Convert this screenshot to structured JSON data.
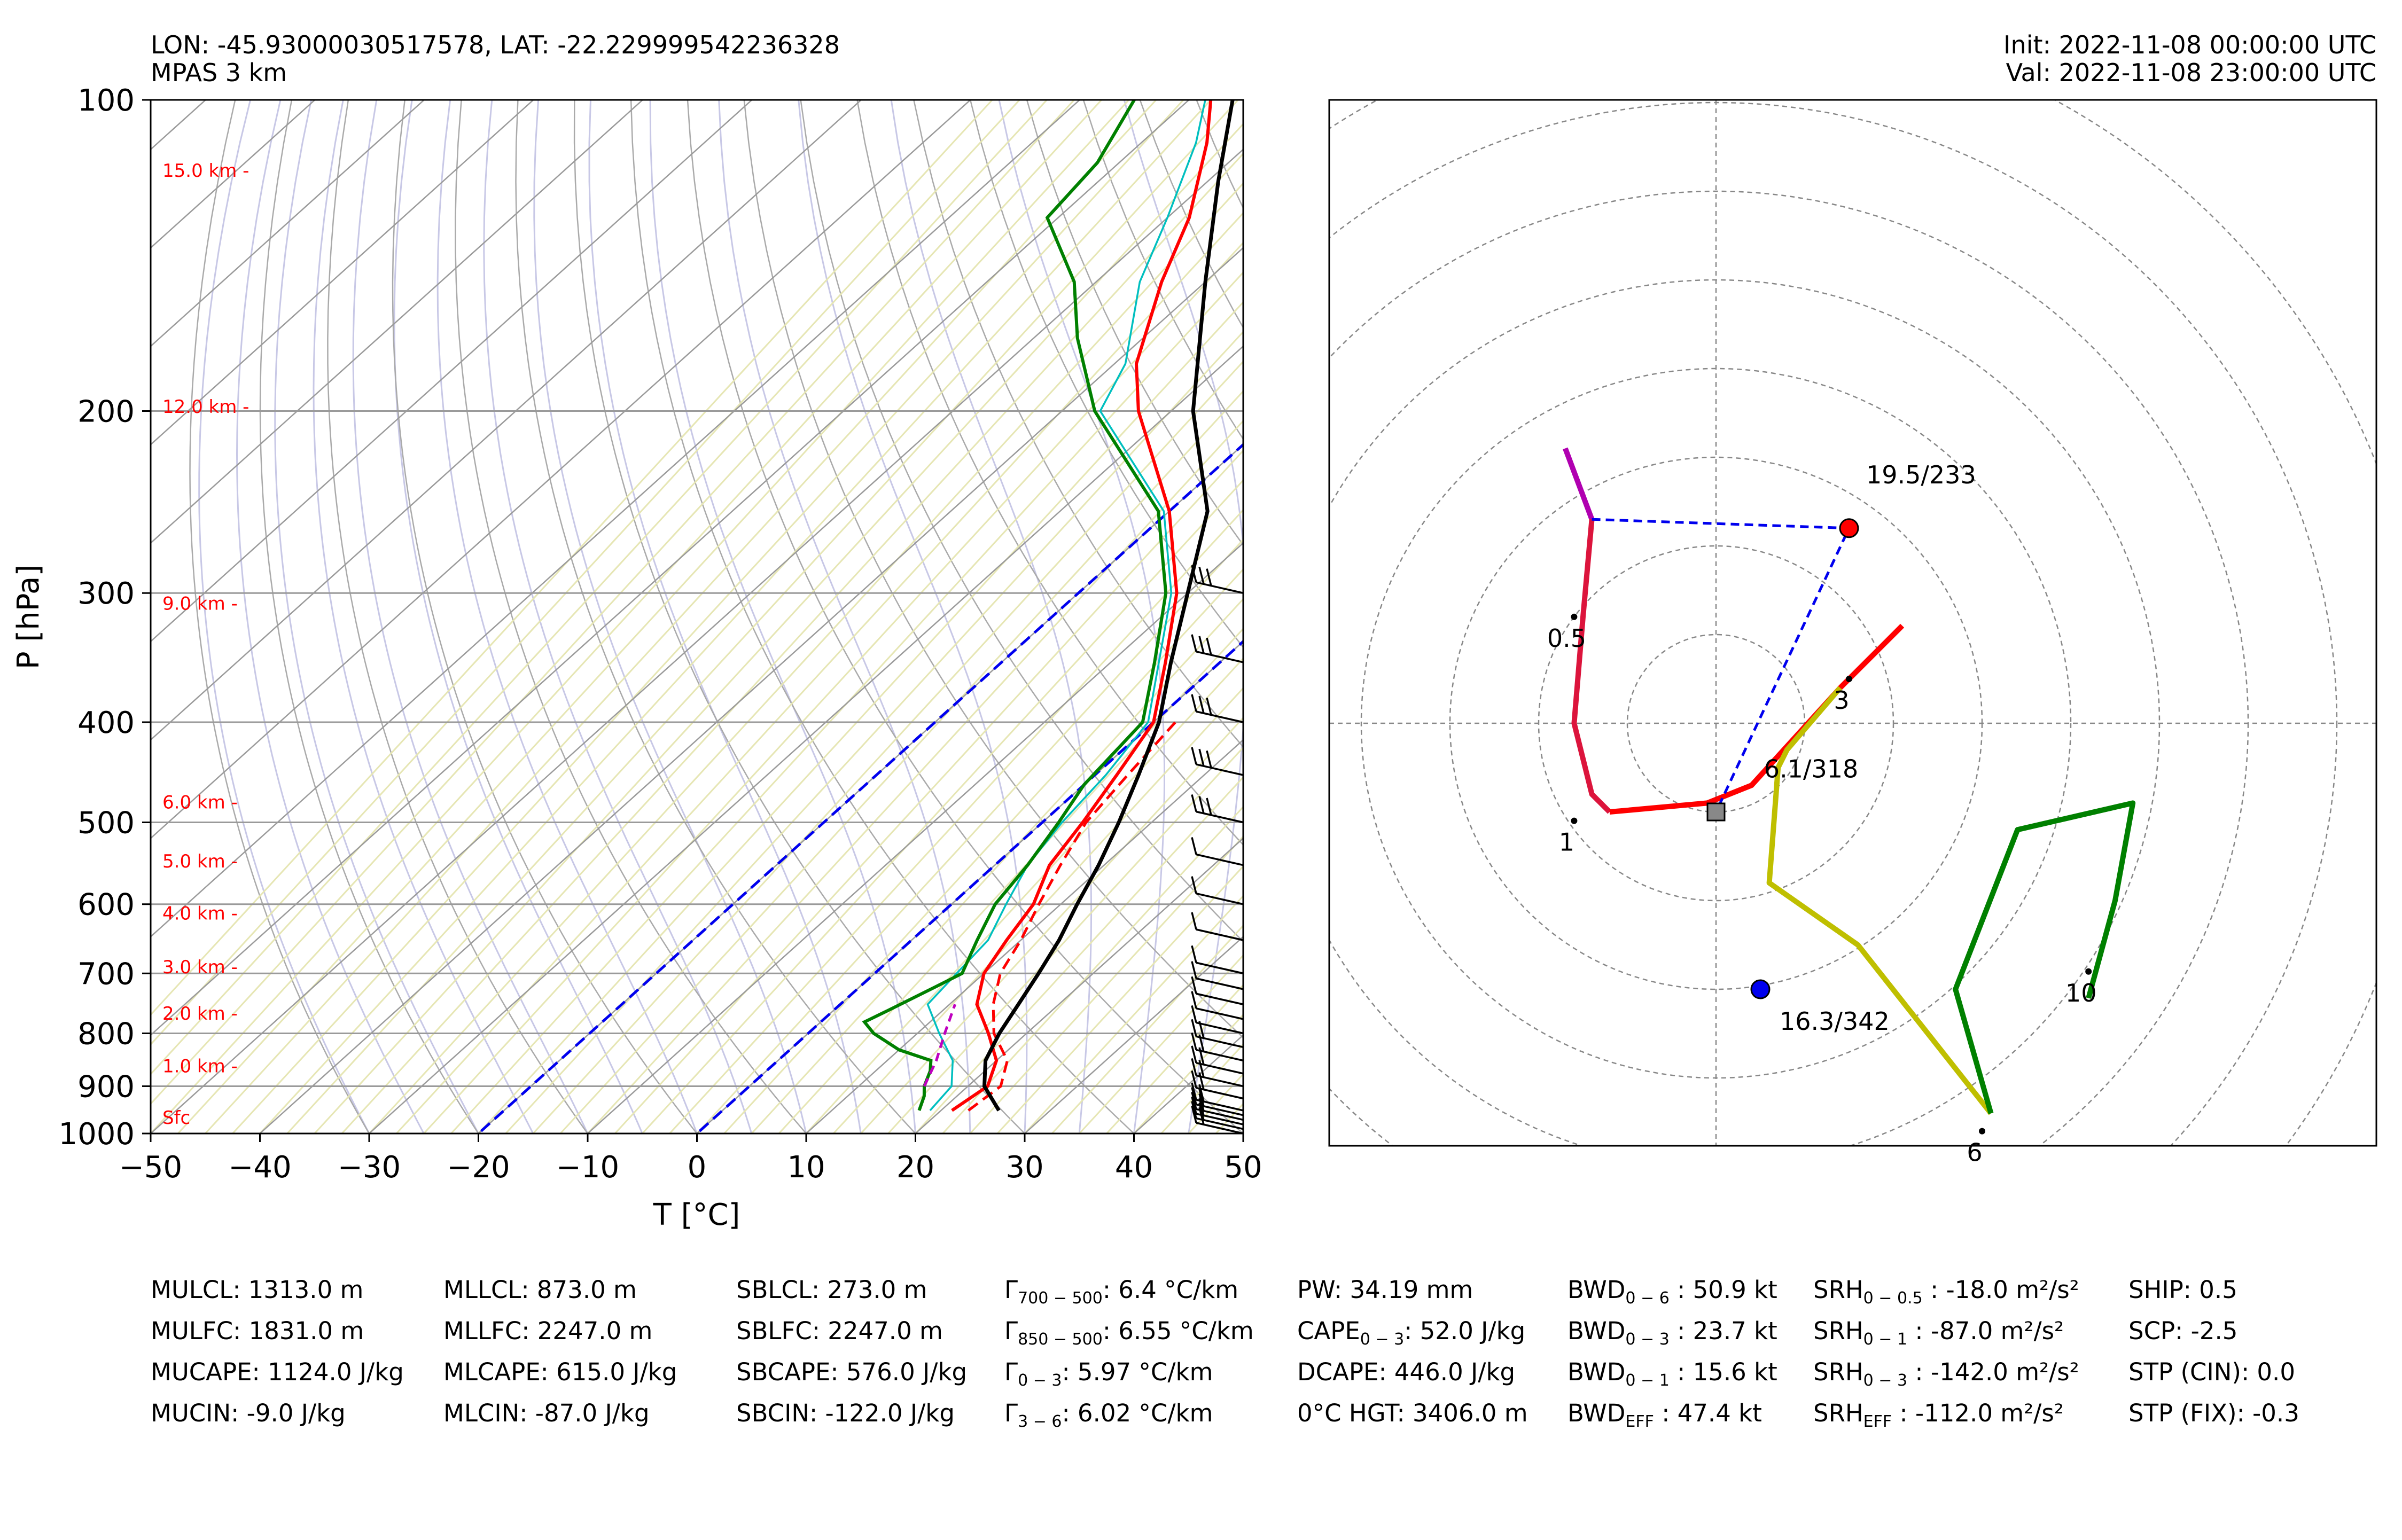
{
  "header": {
    "location": "LON: -45.93000030517578, LAT: -22.229999542236328",
    "model": "MPAS 3 km",
    "init": "Init: 2022-11-08 00:00:00 UTC",
    "valid": "Val: 2022-11-08 23:00:00 UTC"
  },
  "colors": {
    "temperature": "#ff0000",
    "dewpoint": "#008000",
    "virtual_temp": "#ff0000",
    "wetbulb": "#00bfbf",
    "parcel": "#000000",
    "downdraft": "#bf00bf",
    "isotherm_0": "#0000ff",
    "hodo_0_1": "#dc143c",
    "hodo_1_3": "#ff0000",
    "hodo_3_6": "#bfbf00",
    "hodo_6_10": "#008000",
    "hodo_0_0.5": "#b000b0"
  },
  "chart_data": [
    {
      "type": "line",
      "chart": "skew-t log-p",
      "xlabel": "T [°C]",
      "ylabel": "P [hPa]",
      "xlim": [
        -50,
        50
      ],
      "ylim": [
        1000,
        100
      ],
      "yscale": "log",
      "grid": true,
      "x_ticks": [
        "−50",
        "−40",
        "−30",
        "−20",
        "−10",
        "0",
        "10",
        "20",
        "30",
        "40",
        "50"
      ],
      "y_ticks": [
        "100",
        "200",
        "300",
        "400",
        "500",
        "600",
        "700",
        "800",
        "900",
        "1000"
      ],
      "height_labels": [
        {
          "p": 965,
          "label": "Sfc"
        },
        {
          "p": 860,
          "label": "1.0 km -"
        },
        {
          "p": 765,
          "label": "2.0 km -"
        },
        {
          "p": 690,
          "label": "3.0 km -"
        },
        {
          "p": 612,
          "label": "4.0 km -"
        },
        {
          "p": 545,
          "label": "5.0 km -"
        },
        {
          "p": 478,
          "label": "6.0 km -"
        },
        {
          "p": 307,
          "label": "9.0 km -"
        },
        {
          "p": 198,
          "label": "12.0 km -"
        },
        {
          "p": 117,
          "label": "15.0 km -"
        }
      ],
      "series": [
        {
          "role": "virtual_temperature",
          "style": "dashed",
          "points": [
            [
              950,
              22.5
            ],
            [
              900,
              23
            ],
            [
              850,
              21
            ],
            [
              800,
              17
            ],
            [
              750,
              14
            ],
            [
              700,
              11.5
            ],
            [
              650,
              10
            ],
            [
              600,
              8
            ],
            [
              550,
              6
            ],
            [
              500,
              4
            ],
            [
              450,
              3
            ],
            [
              400,
              2
            ]
          ]
        },
        {
          "role": "temperature",
          "points": [
            [
              950,
              21
            ],
            [
              900,
              21.8
            ],
            [
              850,
              20
            ],
            [
              800,
              16.5
            ],
            [
              750,
              12.5
            ],
            [
              700,
              10
            ],
            [
              650,
              8.7
            ],
            [
              600,
              7.5
            ],
            [
              550,
              5
            ],
            [
              500,
              3.7
            ],
            [
              450,
              2
            ],
            [
              400,
              0
            ],
            [
              350,
              -5
            ],
            [
              300,
              -11
            ],
            [
              250,
              -20
            ],
            [
              200,
              -33
            ],
            [
              180,
              -38
            ],
            [
              150,
              -44
            ],
            [
              130,
              -48
            ],
            [
              110,
              -54
            ],
            [
              100,
              -58
            ]
          ]
        },
        {
          "role": "dewpoint",
          "points": [
            [
              950,
              18
            ],
            [
              920,
              17
            ],
            [
              900,
              16
            ],
            [
              870,
              15
            ],
            [
              850,
              14
            ],
            [
              830,
              10
            ],
            [
              800,
              6
            ],
            [
              780,
              4
            ],
            [
              760,
              5
            ],
            [
              720,
              7
            ],
            [
              700,
              8
            ],
            [
              650,
              6
            ],
            [
              600,
              4
            ],
            [
              550,
              3
            ],
            [
              500,
              1.5
            ],
            [
              460,
              0
            ],
            [
              400,
              -1
            ],
            [
              350,
              -6
            ],
            [
              300,
              -12
            ],
            [
              250,
              -21
            ],
            [
              200,
              -37
            ],
            [
              170,
              -46
            ],
            [
              150,
              -52
            ],
            [
              130,
              -61
            ],
            [
              115,
              -62
            ],
            [
              100,
              -65
            ]
          ]
        },
        {
          "role": "wetbulb",
          "points": [
            [
              950,
              19
            ],
            [
              900,
              18.5
            ],
            [
              850,
              16
            ],
            [
              800,
              12
            ],
            [
              750,
              8
            ],
            [
              700,
              7.5
            ],
            [
              650,
              7
            ],
            [
              600,
              5
            ],
            [
              550,
              3
            ],
            [
              500,
              1.8
            ],
            [
              450,
              1
            ],
            [
              400,
              -0.5
            ],
            [
              300,
              -11.5
            ],
            [
              250,
              -20.5
            ],
            [
              200,
              -36.5
            ],
            [
              180,
              -39
            ],
            [
              150,
              -46
            ],
            [
              130,
              -50
            ],
            [
              110,
              -55
            ],
            [
              100,
              -58.5
            ]
          ]
        },
        {
          "role": "parcel",
          "points": [
            [
              950,
              25.3
            ],
            [
              900,
              21.5
            ],
            [
              850,
              19
            ],
            [
              800,
              17.5
            ],
            [
              750,
              16.3
            ],
            [
              700,
              15
            ],
            [
              650,
              13.5
            ],
            [
              600,
              11.5
            ],
            [
              550,
              9.5
            ],
            [
              500,
              7
            ],
            [
              450,
              4
            ],
            [
              400,
              0.5
            ],
            [
              350,
              -4.5
            ],
            [
              300,
              -10
            ],
            [
              250,
              -16.5
            ],
            [
              200,
              -28
            ],
            [
              150,
              -40
            ],
            [
              120,
              -49
            ],
            [
              100,
              -56
            ]
          ]
        },
        {
          "role": "downdraft",
          "style": "dashed",
          "points": [
            [
              900,
              16
            ],
            [
              850,
              14.5
            ],
            [
              800,
              12.5
            ],
            [
              750,
              10.5
            ]
          ]
        }
      ],
      "isotherm_0": "dashed blue",
      "wind_barbs": true
    },
    {
      "type": "line",
      "chart": "hodograph",
      "grid": true,
      "ring_spacing_kt": 10,
      "segments": [
        {
          "layer": "0-0.5 km",
          "points": [
            [
              -17,
              31
            ],
            [
              -14,
              23
            ]
          ]
        },
        {
          "layer": "0.5-1 km",
          "points": [
            [
              -14,
              23
            ],
            [
              -15,
              12
            ],
            [
              -16,
              0
            ],
            [
              -14,
              -8
            ],
            [
              -12,
              -10
            ]
          ]
        },
        {
          "layer": "1-3 km",
          "points": [
            [
              -12,
              -10
            ],
            [
              -1,
              -9
            ],
            [
              4,
              -7
            ],
            [
              14,
              4
            ],
            [
              19,
              9
            ],
            [
              21,
              11
            ]
          ]
        },
        {
          "layer": "3-6 km",
          "points": [
            [
              14,
              4
            ],
            [
              8,
              -3
            ],
            [
              7,
              -5
            ],
            [
              6,
              -18
            ],
            [
              16,
              -25
            ],
            [
              31,
              -44
            ]
          ]
        },
        {
          "layer": "6-10 km",
          "points": [
            [
              31,
              -44
            ],
            [
              27,
              -30
            ],
            [
              34,
              -12
            ],
            [
              47,
              -9
            ],
            [
              45,
              -20
            ],
            [
              42,
              -31
            ]
          ]
        }
      ],
      "labels": [
        {
          "u": -16,
          "v": 12,
          "text": "0.5"
        },
        {
          "u": -16,
          "v": -11,
          "text": "1"
        },
        {
          "u": 15,
          "v": 5,
          "text": "3"
        },
        {
          "u": 30,
          "v": -46,
          "text": "6"
        },
        {
          "u": 42,
          "v": -28,
          "text": "10"
        }
      ],
      "markers": [
        {
          "kind": "storm_motion_right",
          "u": 15,
          "v": 22,
          "text": "19.5/233"
        },
        {
          "kind": "mean_wind",
          "u": 3,
          "v": -9,
          "text": "6.1/318"
        },
        {
          "kind": "storm_motion_left",
          "u": 5,
          "v": -30,
          "text": "16.3/342"
        }
      ]
    }
  ],
  "indices": {
    "col1": [
      "MULCL: 1313.0 m",
      "MULFC: 1831.0 m",
      "MUCAPE: 1124.0 J/kg",
      "MUCIN: -9.0 J/kg"
    ],
    "col2": [
      "MLLCL: 873.0 m",
      "MLLFC: 2247.0 m",
      "MLCAPE: 615.0 J/kg",
      "MLCIN: -87.0 J/kg"
    ],
    "col3": [
      "SBLCL: 273.0 m",
      "SBLFC: 2247.0 m",
      "SBCAPE: 576.0 J/kg",
      "SBCIN: -122.0 J/kg"
    ],
    "col4": [
      {
        "sym": "Γ",
        "sub": "700 − 500",
        "val": ": 6.4 °C/km"
      },
      {
        "sym": "Γ",
        "sub": "850 − 500",
        "val": ": 6.55 °C/km"
      },
      {
        "sym": "Γ",
        "sub": "0 − 3",
        "val": ": 5.97 °C/km"
      },
      {
        "sym": "Γ",
        "sub": "3 − 6",
        "val": ": 6.02 °C/km"
      }
    ],
    "col5": [
      {
        "sym": "PW",
        "sub": "",
        "val": ": 34.19 mm"
      },
      {
        "sym": "CAPE",
        "sub": "0 − 3",
        "val": ": 52.0 J/kg"
      },
      {
        "sym": "DCAPE",
        "sub": "",
        "val": ": 446.0 J/kg"
      },
      {
        "sym": "0°C HGT",
        "sub": "",
        "val": ": 3406.0 m"
      }
    ],
    "col6": [
      {
        "sym": "BWD",
        "sub": "0 − 6",
        "val": " : 50.9 kt"
      },
      {
        "sym": "BWD",
        "sub": "0 − 3",
        "val": " : 23.7 kt"
      },
      {
        "sym": "BWD",
        "sub": "0 − 1",
        "val": " : 15.6 kt"
      },
      {
        "sym": "BWD",
        "sub": "EFF",
        "val": " : 47.4 kt"
      }
    ],
    "col7": [
      {
        "sym": "SRH",
        "sub": "0 − 0.5",
        "val": " : -18.0 m²/s²"
      },
      {
        "sym": "SRH",
        "sub": "0 − 1",
        "val": " : -87.0 m²/s²"
      },
      {
        "sym": "SRH",
        "sub": "0 − 3",
        "val": " : -142.0 m²/s²"
      },
      {
        "sym": "SRH",
        "sub": "EFF",
        "val": " : -112.0 m²/s²"
      }
    ],
    "col8": [
      "SHIP: 0.5",
      "SCP: -2.5",
      "STP (CIN): 0.0",
      "STP (FIX): -0.3"
    ]
  }
}
